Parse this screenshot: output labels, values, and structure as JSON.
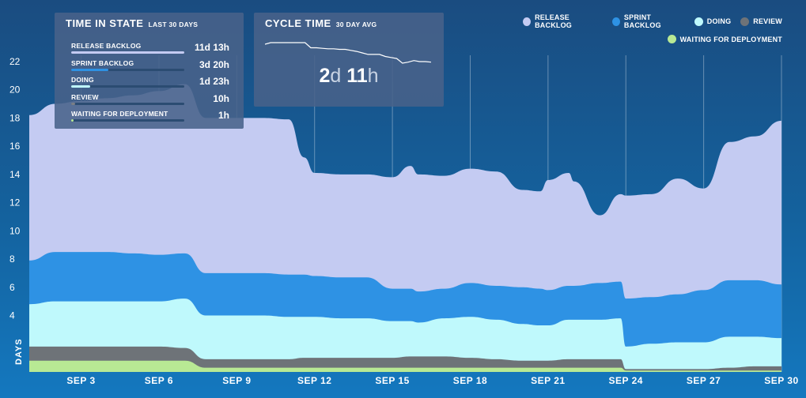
{
  "chart_data": {
    "type": "area",
    "stacked": true,
    "xlabel": "",
    "ylabel": "DAYS",
    "ylim": [
      0,
      23
    ],
    "yticks": [
      4,
      6,
      8,
      10,
      12,
      14,
      16,
      18,
      20,
      22
    ],
    "grid": "vertical",
    "x_tick_labels": [
      "Sep 3",
      "Sep 6",
      "Sep 9",
      "Sep 12",
      "Sep 15",
      "Sep 18",
      "Sep 21",
      "Sep 24",
      "Sep 27",
      "Sep 30"
    ],
    "x_tick_days": [
      3,
      6,
      9,
      12,
      15,
      18,
      21,
      24,
      27,
      30
    ],
    "x": [
      1,
      2,
      3,
      4,
      5,
      6,
      7,
      7.8,
      8,
      9,
      10,
      11,
      11.6,
      12,
      13,
      14,
      15,
      15.7,
      16,
      17,
      18,
      19,
      20,
      20.7,
      21,
      21.8,
      22,
      23,
      23.8,
      24,
      25,
      26,
      27,
      28,
      29,
      30
    ],
    "series": [
      {
        "name": "WAITING FOR DEPLOYMENT",
        "color": "#b8e994",
        "values": [
          0.8,
          0.8,
          0.8,
          0.8,
          0.8,
          0.8,
          0.8,
          0.3,
          0.3,
          0.3,
          0.3,
          0.3,
          0.3,
          0.3,
          0.3,
          0.3,
          0.3,
          0.3,
          0.3,
          0.3,
          0.3,
          0.3,
          0.3,
          0.3,
          0.3,
          0.3,
          0.3,
          0.3,
          0.3,
          0.1,
          0.1,
          0.1,
          0.1,
          0.1,
          0.1,
          0.1
        ]
      },
      {
        "name": "REVIEW",
        "color": "#6e7378",
        "values": [
          1.0,
          1.0,
          1.0,
          1.0,
          1.0,
          1.0,
          0.9,
          0.6,
          0.6,
          0.6,
          0.6,
          0.6,
          0.7,
          0.7,
          0.7,
          0.7,
          0.7,
          0.8,
          0.8,
          0.8,
          0.7,
          0.6,
          0.5,
          0.5,
          0.5,
          0.6,
          0.6,
          0.6,
          0.6,
          0.1,
          0.1,
          0.1,
          0.1,
          0.2,
          0.3,
          0.3
        ]
      },
      {
        "name": "DOING",
        "color": "#bff9fc",
        "values": [
          3.0,
          3.2,
          3.2,
          3.2,
          3.2,
          3.2,
          3.5,
          3.1,
          3.1,
          3.1,
          3.1,
          3.0,
          2.9,
          2.9,
          2.8,
          2.8,
          2.6,
          2.5,
          2.4,
          2.7,
          2.9,
          2.8,
          2.6,
          2.5,
          2.5,
          2.8,
          2.8,
          2.8,
          2.9,
          1.6,
          1.8,
          1.9,
          1.9,
          2.2,
          2.1,
          2.0
        ]
      },
      {
        "name": "SPRINT BACKLOG",
        "color": "#2e92e4",
        "values": [
          3.1,
          3.5,
          3.5,
          3.5,
          3.4,
          3.3,
          3.2,
          3.0,
          3.0,
          3.0,
          3.0,
          3.0,
          3.0,
          2.9,
          2.9,
          2.9,
          2.3,
          2.3,
          2.2,
          2.1,
          2.4,
          2.4,
          2.6,
          2.6,
          2.5,
          2.4,
          2.4,
          2.6,
          2.6,
          3.4,
          3.3,
          3.4,
          3.7,
          4.0,
          4.0,
          3.8
        ]
      },
      {
        "name": "RELEASE BACKLOG",
        "color": "#c4cbf2",
        "values": [
          10.3,
          10.5,
          10.7,
          10.9,
          11.2,
          11.6,
          12.0,
          11.0,
          11.0,
          11.0,
          11.0,
          11.0,
          8.3,
          7.3,
          7.3,
          7.3,
          7.9,
          8.7,
          8.3,
          8.0,
          8.1,
          8.1,
          6.9,
          6.9,
          7.8,
          8.0,
          7.4,
          4.8,
          6.2,
          7.3,
          7.3,
          8.2,
          7.2,
          9.8,
          10.2,
          11.6
        ]
      }
    ]
  },
  "time_in_state": {
    "title": "TIME IN STATE",
    "subtitle": "LAST 30 DAYS",
    "rows": [
      {
        "name": "RELEASE BACKLOG",
        "value": "11d 13h",
        "fraction": 1.0,
        "color": "#c4cbf2"
      },
      {
        "name": "SPRINT BACKLOG",
        "value": "3d 20h",
        "fraction": 0.33,
        "color": "#2e92e4"
      },
      {
        "name": "DOING",
        "value": "1d 23h",
        "fraction": 0.17,
        "color": "#bff9fc"
      },
      {
        "name": "REVIEW",
        "value": "10h",
        "fraction": 0.035,
        "color": "#7a7f86"
      },
      {
        "name": "WAITING FOR DEPLOYMENT",
        "value": "1h",
        "fraction": 0.006,
        "color": "#b8e994"
      }
    ]
  },
  "cycle_time": {
    "title": "CYCLE TIME",
    "subtitle": "30 DAY AVG",
    "value_days": "2",
    "unit_days": "d",
    "value_hours": "11",
    "unit_hours": "h",
    "sparkline": [
      2.92,
      2.95,
      2.95,
      2.95,
      2.95,
      2.95,
      2.95,
      2.95,
      2.85,
      2.85,
      2.84,
      2.83,
      2.83,
      2.82,
      2.82,
      2.8,
      2.78,
      2.75,
      2.72,
      2.72,
      2.72,
      2.68,
      2.66,
      2.64,
      2.55,
      2.57,
      2.6,
      2.58,
      2.58,
      2.57
    ]
  },
  "legend": {
    "row1": [
      {
        "label": "RELEASE BACKLOG",
        "color": "#c4cbf2"
      },
      {
        "label": "SPRINT BACKLOG",
        "color": "#2e92e4"
      },
      {
        "label": "DOING",
        "color": "#bff9fc"
      },
      {
        "label": "REVIEW",
        "color": "#6e7378"
      }
    ],
    "row2": [
      {
        "label": "WAITING FOR DEPLOYMENT",
        "color": "#b8e994"
      }
    ]
  }
}
